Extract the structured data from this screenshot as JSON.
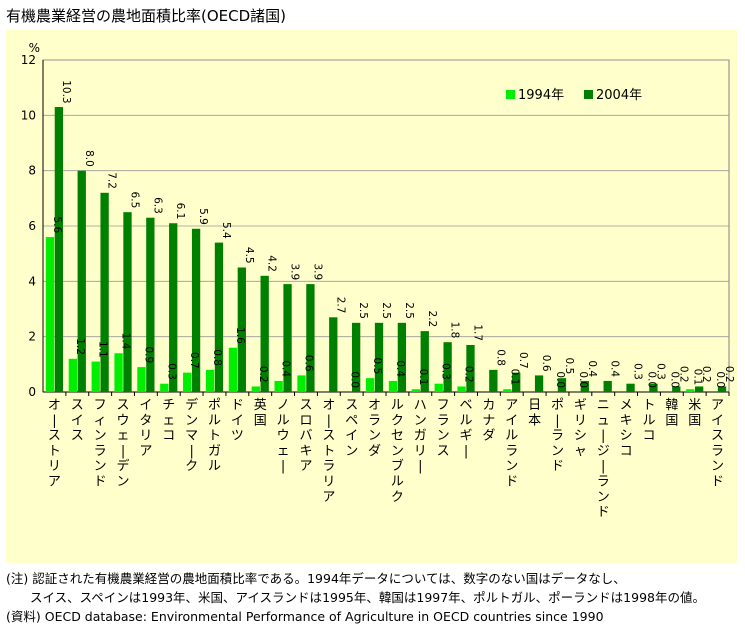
{
  "title": "有機農業経営の農地面積比率(OECD諸国)",
  "chart_data": {
    "type": "bar",
    "ylabel": "%",
    "ylim": [
      0,
      12
    ],
    "yticks": [
      0,
      2,
      4,
      6,
      8,
      10,
      12
    ],
    "grid": true,
    "legend_position": "top-right",
    "categories": [
      "オーストリア",
      "スイス",
      "フィンランド",
      "スウェーデン",
      "イタリア",
      "チェコ",
      "デンマーク",
      "ポルトガル",
      "ドイツ",
      "英国",
      "ノルウェー",
      "スロバキア",
      "オーストラリア",
      "スペイン",
      "オランダ",
      "ルクセンブルク",
      "ハンガリー",
      "フランス",
      "ベルギー",
      "カナダ",
      "アイルランド",
      "日本",
      "ポーランド",
      "ギリシャ",
      "ニュージーランド",
      "メキシコ",
      "トルコ",
      "韓国",
      "米国",
      "アイスランド"
    ],
    "series": [
      {
        "name": "1994年",
        "color": "#00ee00",
        "values": [
          5.6,
          1.2,
          1.1,
          1.4,
          0.9,
          0.3,
          0.7,
          0.8,
          1.6,
          0.2,
          0.4,
          0.6,
          null,
          0.0,
          0.5,
          0.4,
          0.1,
          0.3,
          0.2,
          null,
          0.1,
          null,
          0.0,
          0.0,
          null,
          null,
          0.0,
          0.0,
          0.1,
          0.0
        ],
        "labels": [
          "5.6",
          "1.2",
          "1.1",
          "1.4",
          "0.9",
          "0.3",
          "0.7",
          "0.8",
          "1.6",
          "0.2",
          "0.4",
          "0.6",
          "",
          "0.0",
          "0.5",
          "0.4",
          "0.1",
          "0.3",
          "0.2",
          "",
          "0.1",
          "",
          "0.0",
          "0.0",
          "",
          "",
          "0.0",
          "0.0",
          "0.1",
          "0.0"
        ]
      },
      {
        "name": "2004年",
        "color": "#008000",
        "values": [
          10.3,
          8.0,
          7.2,
          6.5,
          6.3,
          6.1,
          5.9,
          5.4,
          4.5,
          4.2,
          3.9,
          3.9,
          2.7,
          2.5,
          2.5,
          2.5,
          2.2,
          1.8,
          1.7,
          0.8,
          0.7,
          0.6,
          0.5,
          0.4,
          0.4,
          0.3,
          0.3,
          0.2,
          0.2,
          0.2
        ],
        "labels": [
          "10.3",
          "8.0",
          "7.2",
          "6.5",
          "6.3",
          "6.1",
          "5.9",
          "5.4",
          "4.5",
          "4.2",
          "3.9",
          "3.9",
          "2.7",
          "2.5",
          "2.5",
          "2.5",
          "2.2",
          "1.8",
          "1.7",
          "0.8",
          "0.7",
          "0.6",
          "0.5",
          "0.4",
          "0.4",
          "0.3",
          "0.3",
          "0.2",
          "0.2",
          "0.2"
        ]
      }
    ]
  },
  "notes": {
    "line1": "(注) 認証された有機農業経営の農地面積比率である。1994年データについては、数字のない国はデータなし、",
    "line2": "スイス、スペインは1993年、米国、アイスランドは1995年、韓国は1997年、ポルトガル、ポーランドは1998年の値。",
    "line3": "(資料) OECD database: Environmental Performance of Agriculture in OECD countries since 1990"
  }
}
